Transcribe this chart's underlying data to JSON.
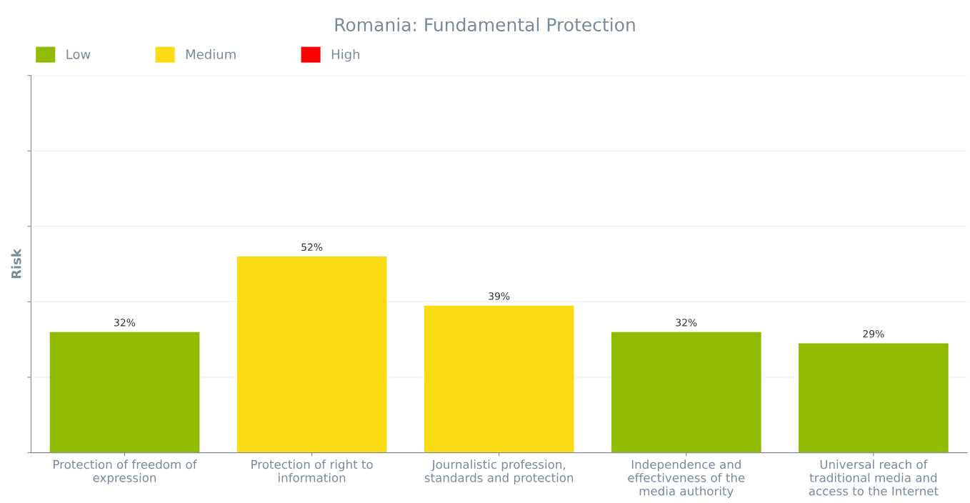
{
  "chart_data": {
    "type": "bar",
    "title": "Romania: Fundamental Protection",
    "ylabel": "Risk",
    "categories": [
      "Protection of freedom of\nexpression",
      "Protection of right to\ninformation",
      "Journalistic profession,\nstandards and protection",
      "Independence and\neffectiveness of the\nmedia authority",
      "Universal reach of\ntraditional media and\naccess to the Internet"
    ],
    "series": [
      {
        "name": "Low",
        "color": "#8fbc00",
        "values": [
          32,
          null,
          null,
          32,
          29
        ],
        "value_labels": [
          "32%",
          null,
          null,
          "32%",
          "29%"
        ]
      },
      {
        "name": "Medium",
        "color": "#fadb14",
        "values": [
          null,
          52,
          39,
          null,
          null
        ],
        "value_labels": [
          null,
          "52%",
          "39%",
          null,
          null
        ]
      },
      {
        "name": "High",
        "color": "#ff0000",
        "values": [
          null,
          null,
          null,
          null,
          null
        ],
        "value_labels": [
          null,
          null,
          null,
          null,
          null
        ]
      }
    ],
    "ylim": [
      0,
      100
    ],
    "yticks": [
      {
        "value": 0,
        "label": null
      },
      {
        "value": 20,
        "label": null
      },
      {
        "value": 40,
        "label": null
      },
      {
        "value": 60,
        "label": null
      },
      {
        "value": 80,
        "label": null
      },
      {
        "value": 100,
        "label": null
      }
    ],
    "tick_labels": "x",
    "grid": "y",
    "legend": "top left"
  }
}
